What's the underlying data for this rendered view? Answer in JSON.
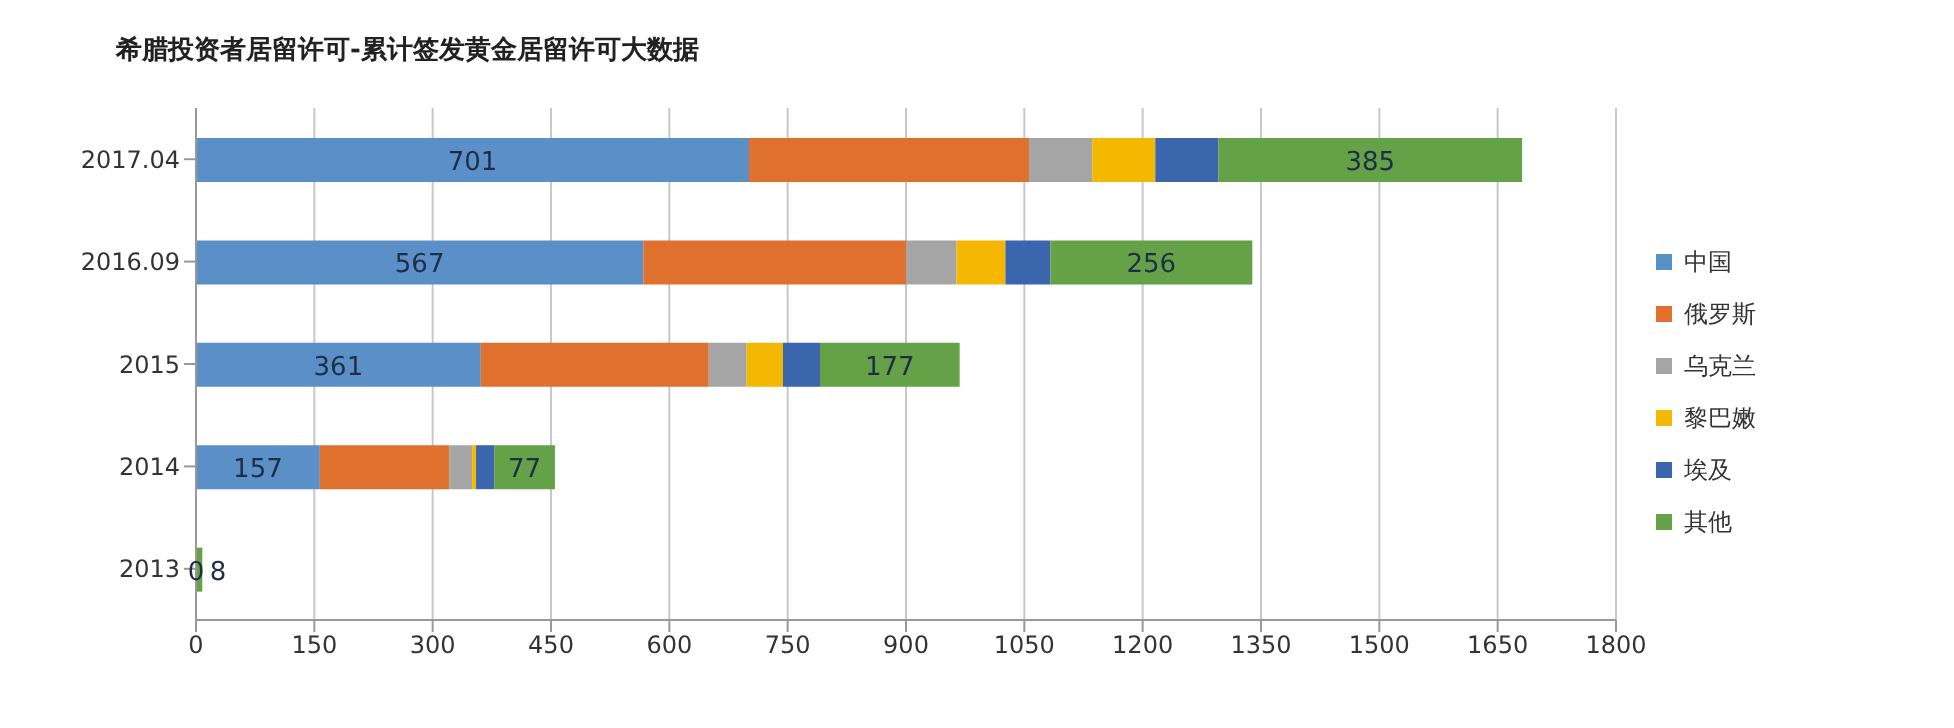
{
  "chart_data": {
    "type": "bar",
    "orientation": "horizontal",
    "stacked": true,
    "title": "希腊投资者居留许可-累计签发黄金居留许可大数据",
    "categories": [
      "2017.04",
      "2016.09",
      "2015",
      "2014",
      "2013"
    ],
    "series": [
      {
        "name": "中国",
        "color": "#5b8fc7",
        "values": [
          701,
          567,
          361,
          157,
          0
        ],
        "value_labels": [
          "701",
          "567",
          "361",
          "157",
          "0"
        ]
      },
      {
        "name": "俄罗斯",
        "color": "#e0702e",
        "values": [
          355,
          333,
          289,
          164,
          null
        ]
      },
      {
        "name": "乌克兰",
        "color": "#a5a5a5",
        "values": [
          80,
          64,
          48,
          29,
          null
        ]
      },
      {
        "name": "黎巴嫩",
        "color": "#f5b800",
        "values": [
          80,
          62,
          46,
          5,
          null
        ]
      },
      {
        "name": "埃及",
        "color": "#3b65ad",
        "values": [
          80,
          57,
          47,
          23,
          null
        ]
      },
      {
        "name": "其他",
        "color": "#65a147",
        "values": [
          385,
          256,
          177,
          77,
          8
        ],
        "value_labels": [
          "385",
          "256",
          "177",
          "77",
          "8"
        ]
      }
    ],
    "xlim": [
      0,
      1800
    ],
    "xticks": [
      0,
      150,
      300,
      450,
      600,
      750,
      900,
      1050,
      1200,
      1350,
      1500,
      1650,
      1800
    ],
    "grid": "x",
    "legend": "right"
  }
}
